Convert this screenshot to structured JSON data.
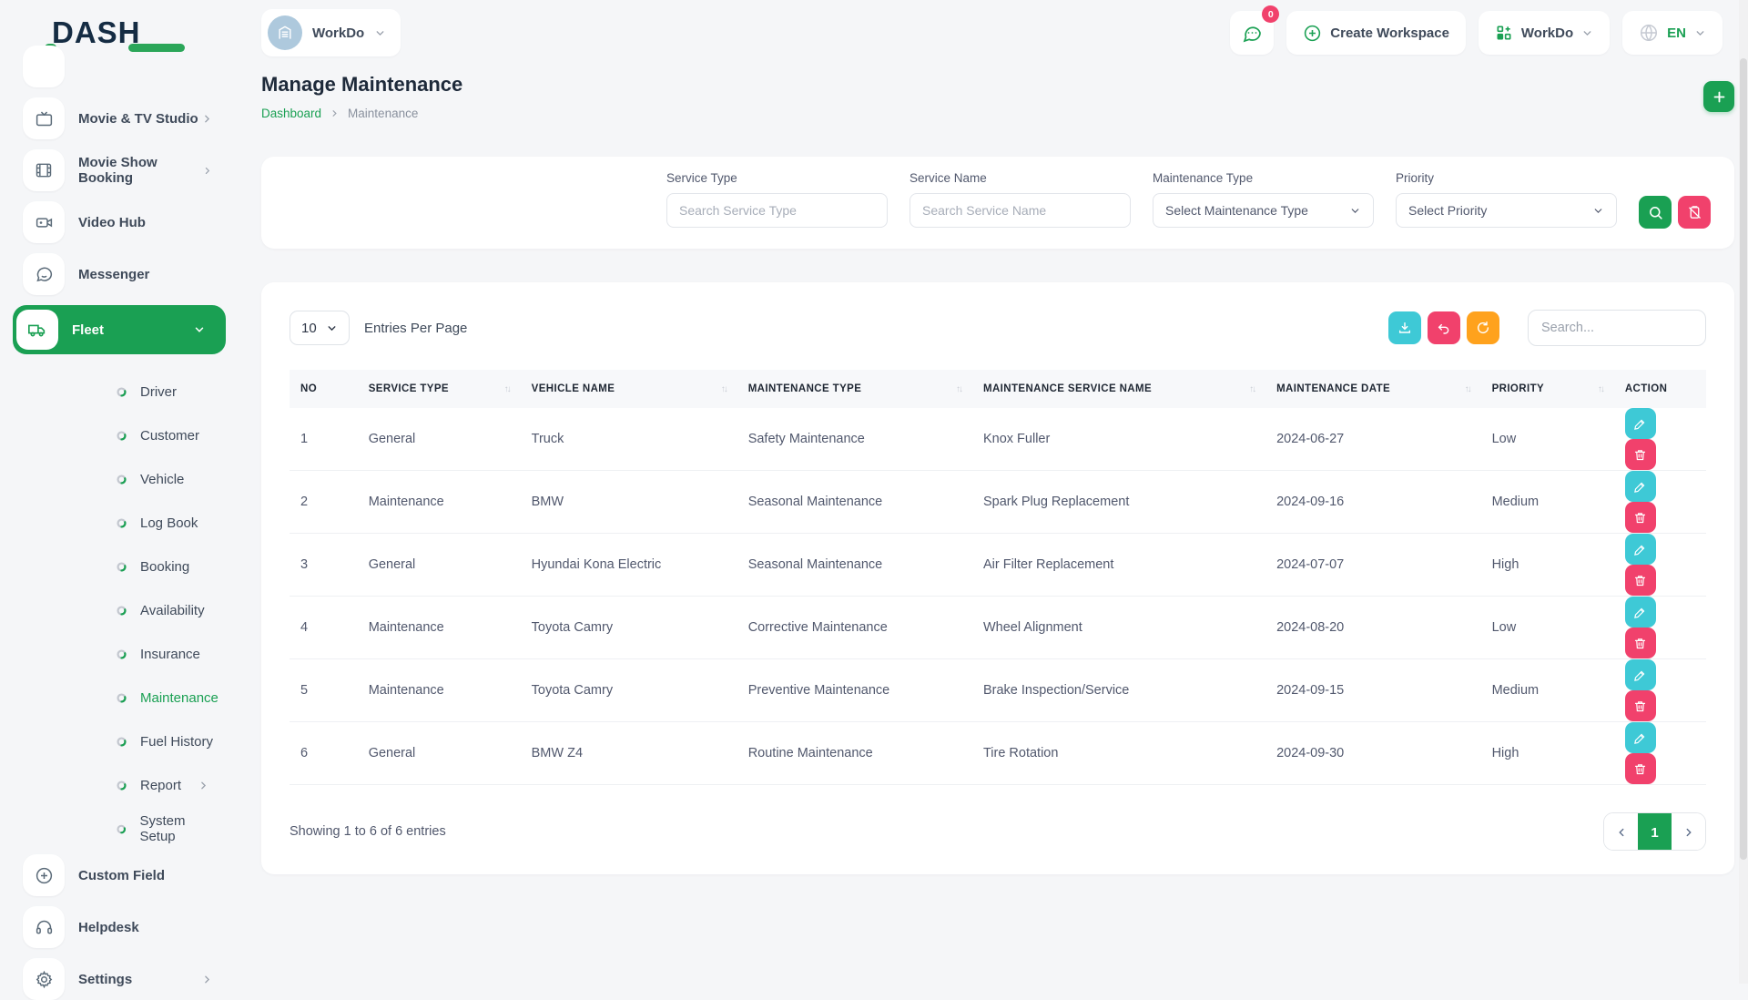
{
  "colors": {
    "primary_green": "#1aa053",
    "teal": "#3ec9d6",
    "pink": "#f1416c",
    "orange": "#ffa21d",
    "logo_navy": "#152c43"
  },
  "brand": {
    "logo_text": "DASH"
  },
  "topbar": {
    "workspace_name": "WorkDo",
    "chat_badge": "0",
    "create_workspace_label": "Create Workspace",
    "app_switcher_label": "WorkDo",
    "language": "EN"
  },
  "sidebar": {
    "items": [
      {
        "label": "Movie & TV Studio",
        "icon": "tv-icon",
        "chevron": true
      },
      {
        "label": "Movie Show Booking",
        "icon": "film-icon",
        "chevron": true
      },
      {
        "label": "Video Hub",
        "icon": "video-camera-icon",
        "chevron": false
      },
      {
        "label": "Messenger",
        "icon": "chat-bubble-icon",
        "chevron": false
      },
      {
        "label": "Fleet",
        "icon": "truck-icon",
        "chevron": "down",
        "active": true
      }
    ],
    "fleet_subitems": [
      {
        "label": "Driver"
      },
      {
        "label": "Customer"
      },
      {
        "label": "Vehicle"
      },
      {
        "label": "Log Book"
      },
      {
        "label": "Booking"
      },
      {
        "label": "Availability"
      },
      {
        "label": "Insurance"
      },
      {
        "label": "Maintenance",
        "active": true
      },
      {
        "label": "Fuel History"
      },
      {
        "label": "Report",
        "chevron": true
      },
      {
        "label": "System Setup"
      }
    ],
    "bottom_items": [
      {
        "label": "Custom Field",
        "icon": "plus-circle-icon",
        "chevron": false
      },
      {
        "label": "Helpdesk",
        "icon": "headset-icon",
        "chevron": false
      },
      {
        "label": "Settings",
        "icon": "gear-icon",
        "chevron": true
      }
    ]
  },
  "page": {
    "title": "Manage Maintenance",
    "breadcrumb": {
      "home": "Dashboard",
      "current": "Maintenance"
    }
  },
  "filters": {
    "fields": [
      {
        "label": "Service Type",
        "placeholder": "Search Service Type"
      },
      {
        "label": "Service Name",
        "placeholder": "Search Service Name"
      },
      {
        "label": "Maintenance Type",
        "value": "Select Maintenance Type"
      },
      {
        "label": "Priority",
        "value": "Select Priority"
      }
    ]
  },
  "table": {
    "entries_per_page": "10",
    "entries_per_page_label": "Entries Per Page",
    "search_placeholder": "Search...",
    "columns": [
      {
        "label": "NO",
        "sortable": false
      },
      {
        "label": "SERVICE TYPE",
        "sortable": true
      },
      {
        "label": "VEHICLE NAME",
        "sortable": true
      },
      {
        "label": "MAINTENANCE TYPE",
        "sortable": true
      },
      {
        "label": "MAINTENANCE SERVICE NAME",
        "sortable": true
      },
      {
        "label": "MAINTENANCE DATE",
        "sortable": true
      },
      {
        "label": "PRIORITY",
        "sortable": true
      },
      {
        "label": "ACTION",
        "sortable": false
      }
    ],
    "rows": [
      {
        "no": "1",
        "service_type": "General",
        "vehicle_name": "Truck",
        "maintenance_type": "Safety Maintenance",
        "maintenance_service_name": "Knox Fuller",
        "maintenance_date": "2024-06-27",
        "priority": "Low"
      },
      {
        "no": "2",
        "service_type": "Maintenance",
        "vehicle_name": "BMW",
        "maintenance_type": "Seasonal Maintenance",
        "maintenance_service_name": "Spark Plug Replacement",
        "maintenance_date": "2024-09-16",
        "priority": "Medium"
      },
      {
        "no": "3",
        "service_type": "General",
        "vehicle_name": "Hyundai Kona Electric",
        "maintenance_type": "Seasonal Maintenance",
        "maintenance_service_name": "Air Filter Replacement",
        "maintenance_date": "2024-07-07",
        "priority": "High"
      },
      {
        "no": "4",
        "service_type": "Maintenance",
        "vehicle_name": "Toyota Camry",
        "maintenance_type": "Corrective Maintenance",
        "maintenance_service_name": "Wheel Alignment",
        "maintenance_date": "2024-08-20",
        "priority": "Low"
      },
      {
        "no": "5",
        "service_type": "Maintenance",
        "vehicle_name": "Toyota Camry",
        "maintenance_type": "Preventive Maintenance",
        "maintenance_service_name": "Brake Inspection/Service",
        "maintenance_date": "2024-09-15",
        "priority": "Medium"
      },
      {
        "no": "6",
        "service_type": "General",
        "vehicle_name": "BMW Z4",
        "maintenance_type": "Routine Maintenance",
        "maintenance_service_name": "Tire Rotation",
        "maintenance_date": "2024-09-30",
        "priority": "High"
      }
    ],
    "summary": "Showing 1 to 6 of 6 entries",
    "pagination": {
      "current": "1"
    }
  }
}
